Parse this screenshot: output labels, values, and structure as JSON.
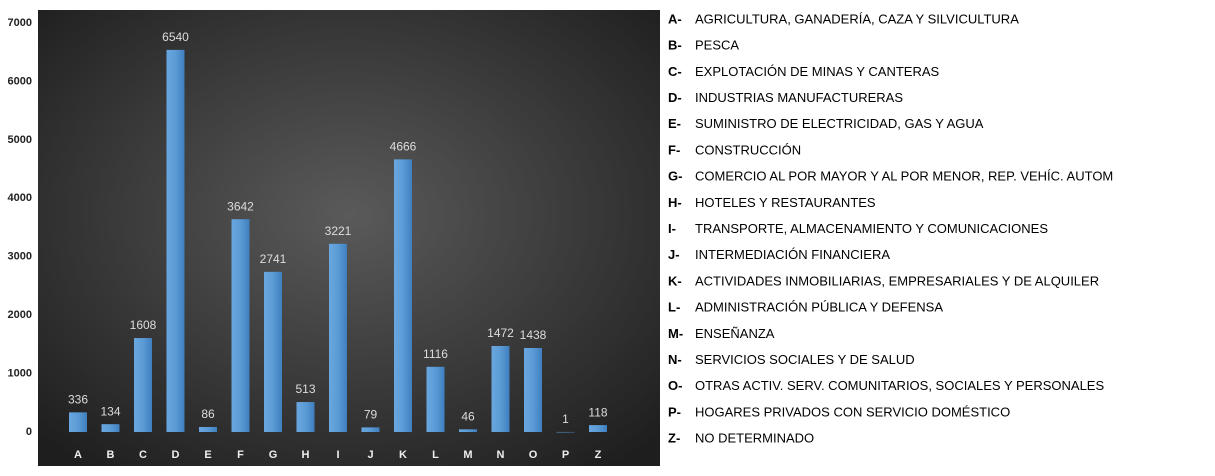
{
  "chart_data": {
    "type": "bar",
    "categories": [
      "A",
      "B",
      "C",
      "D",
      "E",
      "F",
      "G",
      "H",
      "I",
      "J",
      "K",
      "L",
      "M",
      "N",
      "O",
      "P",
      "Z"
    ],
    "values": [
      336,
      134,
      1608,
      6540,
      86,
      3642,
      2741,
      513,
      3221,
      79,
      4666,
      1116,
      46,
      1472,
      1438,
      1,
      118
    ],
    "color": "#5b9bd5",
    "ylim": [
      0,
      7000
    ],
    "yticks": [
      0,
      1000,
      2000,
      3000,
      4000,
      5000,
      6000,
      7000
    ],
    "grid": false
  },
  "legend": [
    {
      "code": "A-",
      "text": "AGRICULTURA, GANADERÍA, CAZA Y SILVICULTURA"
    },
    {
      "code": "B-",
      "text": "PESCA"
    },
    {
      "code": "C-",
      "text": "EXPLOTACIÓN DE MINAS Y CANTERAS"
    },
    {
      "code": "D-",
      "text": "INDUSTRIAS MANUFACTURERAS"
    },
    {
      "code": "E-",
      "text": "SUMINISTRO DE ELECTRICIDAD, GAS Y AGUA"
    },
    {
      "code": "F-",
      "text": "CONSTRUCCIÓN"
    },
    {
      "code": "G-",
      "text": "COMERCIO AL POR MAYOR Y AL POR MENOR, REP. VEHÍC. AUTOM"
    },
    {
      "code": "H-",
      "text": "HOTELES Y RESTAURANTES"
    },
    {
      "code": "I-",
      "text": "TRANSPORTE, ALMACENAMIENTO Y COMUNICACIONES"
    },
    {
      "code": "J-",
      "text": "INTERMEDIACIÓN FINANCIERA"
    },
    {
      "code": "K-",
      "text": "ACTIVIDADES INMOBILIARIAS, EMPRESARIALES Y DE ALQUILER"
    },
    {
      "code": "L-",
      "text": "ADMINISTRACIÓN PÚBLICA Y DEFENSA"
    },
    {
      "code": "M-",
      "text": "ENSEÑANZA"
    },
    {
      "code": "N-",
      "text": "SERVICIOS SOCIALES Y DE SALUD"
    },
    {
      "code": "O-",
      "text": "OTRAS ACTIV. SERV. COMUNITARIOS, SOCIALES Y PERSONALES"
    },
    {
      "code": "P-",
      "text": "HOGARES PRIVADOS CON SERVICIO DOMÉSTICO"
    },
    {
      "code": "Z-",
      "text": "NO DETERMINADO"
    }
  ]
}
